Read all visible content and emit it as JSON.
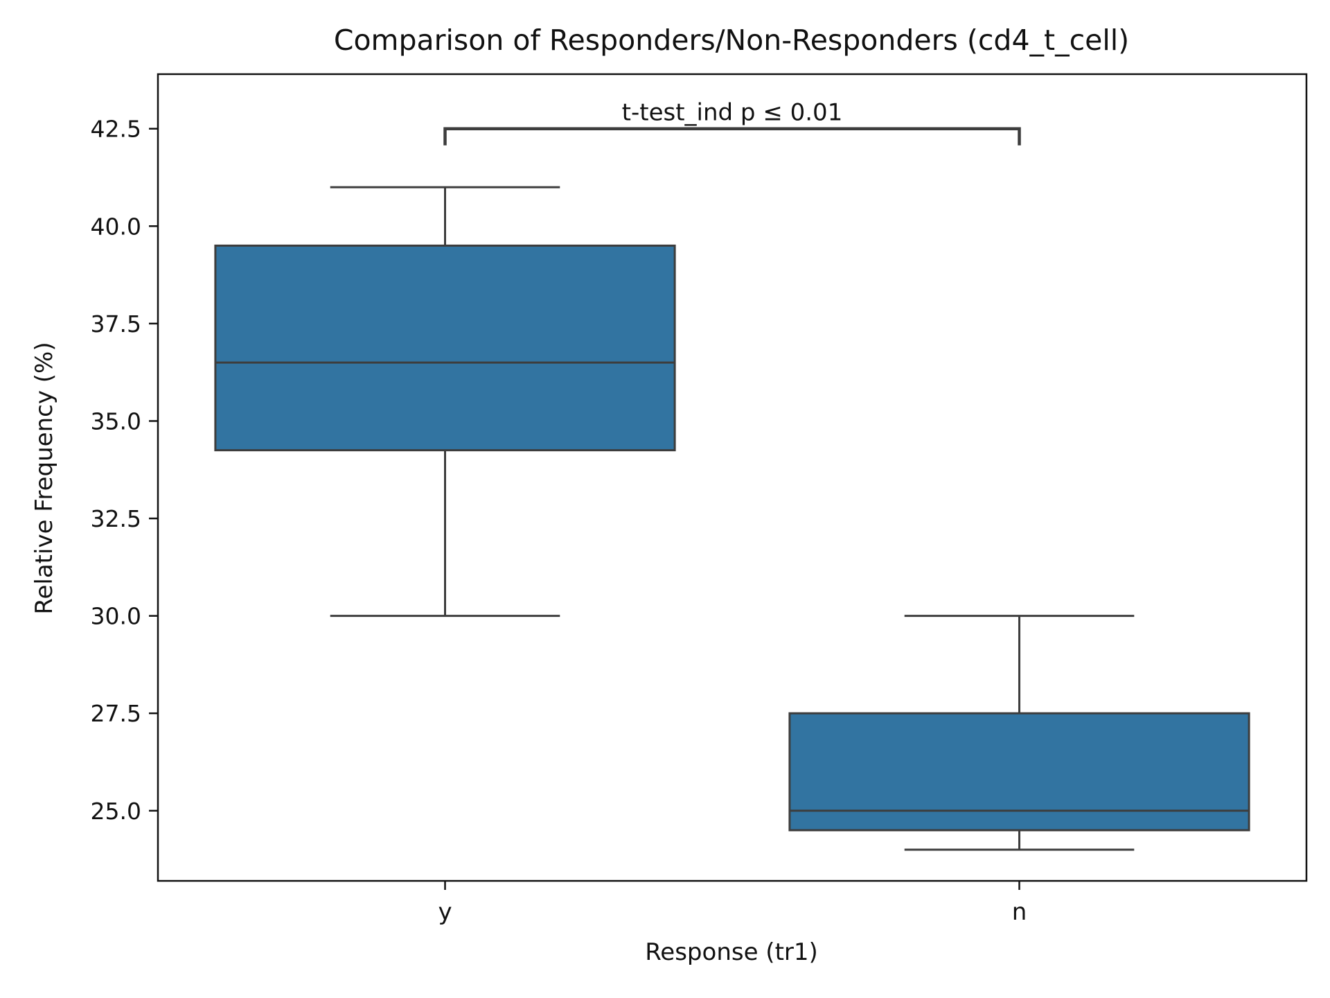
{
  "chart_data": {
    "type": "box",
    "title": "Comparison of Responders/Non-Responders (cd4_t_cell)",
    "xlabel": "Response (tr1)",
    "ylabel": "Relative Frequency (%)",
    "categories": [
      "y",
      "n"
    ],
    "boxes": [
      {
        "category": "y",
        "whisker_low": 30.0,
        "q1": 34.25,
        "median": 36.5,
        "q3": 39.5,
        "whisker_high": 41.0
      },
      {
        "category": "n",
        "whisker_low": 24.0,
        "q1": 24.5,
        "median": 25.0,
        "q3": 27.5,
        "whisker_high": 30.0
      }
    ],
    "ylim": [
      23.2,
      43.9
    ],
    "yticks": [
      25.0,
      27.5,
      30.0,
      32.5,
      35.0,
      37.5,
      40.0,
      42.5
    ],
    "ytick_labels": [
      "25.0",
      "27.5",
      "30.0",
      "32.5",
      "35.0",
      "37.5",
      "40.0",
      "42.5"
    ],
    "annotation": {
      "text": "t-test_ind p ≤ 0.01",
      "between": [
        "y",
        "n"
      ],
      "y": 42.5
    },
    "grid": false,
    "legend": "none",
    "colors": {
      "box_fill": "#3274a1",
      "line": "#3d3d3d",
      "axis": "#111111"
    }
  }
}
